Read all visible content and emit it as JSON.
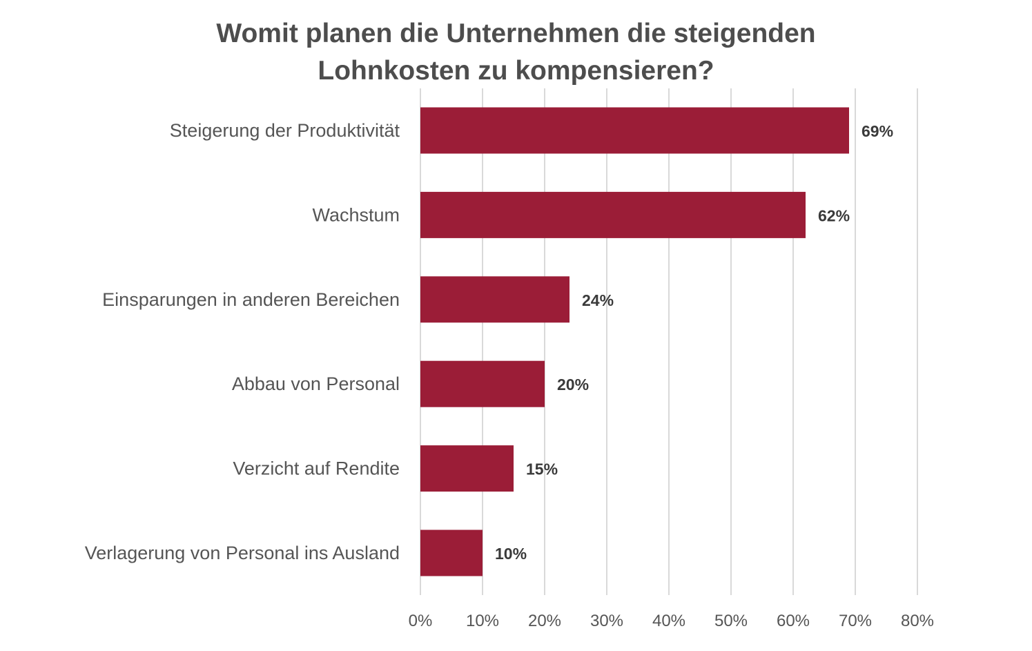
{
  "chart_data": {
    "type": "bar",
    "orientation": "horizontal",
    "title": "Womit planen die Unternehmen die steigenden Lohnkosten zu kompensieren?",
    "title_lines": [
      "Womit planen die Unternehmen die steigenden",
      "Lohnkosten zu kompensieren?"
    ],
    "categories": [
      "Steigerung der Produktivität",
      "Wachstum",
      "Einsparungen in anderen Bereichen",
      "Abbau von Personal",
      "Verzicht auf Rendite",
      "Verlagerung von Personal ins Ausland"
    ],
    "values": [
      69,
      62,
      24,
      20,
      15,
      10
    ],
    "data_labels": [
      "69%",
      "62%",
      "24%",
      "20%",
      "15%",
      "10%"
    ],
    "xlim": [
      0,
      80
    ],
    "x_ticks": [
      "0%",
      "10%",
      "20%",
      "30%",
      "40%",
      "50%",
      "60%",
      "70%",
      "80%"
    ],
    "grid": "vertical",
    "legend": "none",
    "bar_color": "#9b1d37",
    "grid_color": "#d9d9d9"
  }
}
